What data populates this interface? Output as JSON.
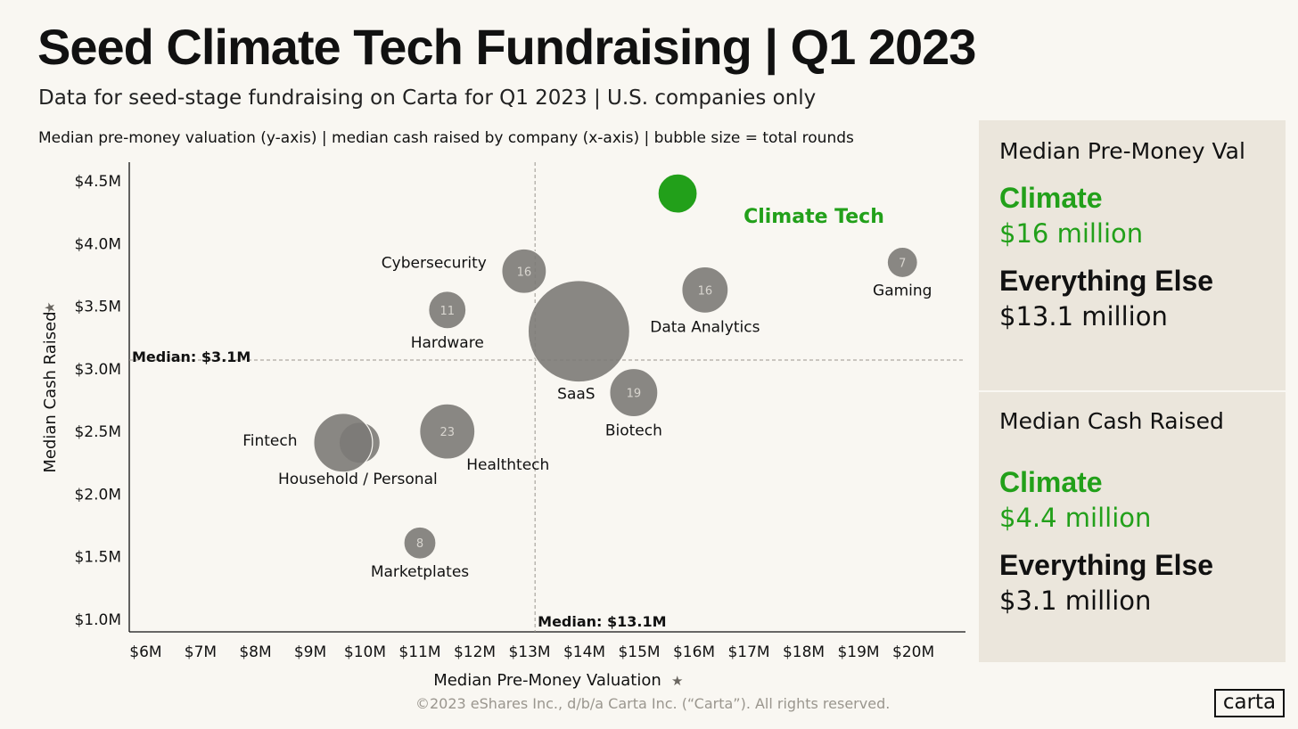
{
  "header": {
    "title": "Seed Climate Tech Fundraising | Q1 2023",
    "subtitle": "Data for seed-stage fundraising on Carta for Q1 2023 | U.S. companies only",
    "note": "Median pre-money valuation (y-axis) |  median cash raised by company (x-axis) | bubble size = total rounds"
  },
  "chart_data": {
    "type": "scatter",
    "subtype": "bubble",
    "xlabel": "Median Pre-Money Valuation",
    "ylabel": "Median Cash Raised",
    "x_ticks": [
      "$6M",
      "$7M",
      "$8M",
      "$9M",
      "$10M",
      "$11M",
      "$12M",
      "$13M",
      "$14M",
      "$15M",
      "$16M",
      "$17M",
      "$18M",
      "$19M",
      "$20M"
    ],
    "x_tick_values": [
      6,
      7,
      8,
      9,
      10,
      11,
      12,
      13,
      14,
      15,
      16,
      17,
      18,
      19,
      20
    ],
    "y_ticks": [
      "$1.0M",
      "$1.5M",
      "$2.0M",
      "$2.5M",
      "$3.0M",
      "$3.5M",
      "$4.0M",
      "$4.5M"
    ],
    "y_tick_values": [
      1.0,
      1.5,
      2.0,
      2.5,
      3.0,
      3.5,
      4.0,
      4.5
    ],
    "xlim": [
      5.7,
      20.95
    ],
    "ylim": [
      0.9,
      4.65
    ],
    "units": "$M",
    "median_lines": [
      {
        "axis": "x",
        "value": 13.1,
        "label": "Median: $13.1M"
      },
      {
        "axis": "y",
        "value": 3.07,
        "label": "Median: $3.1M"
      }
    ],
    "points": [
      {
        "name": "Climate Tech",
        "x": 15.7,
        "y": 4.4,
        "rounds": null,
        "highlight": true
      },
      {
        "name": "Gaming",
        "x": 19.8,
        "y": 3.85,
        "rounds": 7
      },
      {
        "name": "Cybersecurity",
        "x": 12.9,
        "y": 3.78,
        "rounds": 16
      },
      {
        "name": "Data Analytics",
        "x": 16.2,
        "y": 3.63,
        "rounds": 16
      },
      {
        "name": "Hardware",
        "x": 11.5,
        "y": 3.47,
        "rounds": 11
      },
      {
        "name": "SaaS",
        "x": 13.9,
        "y": 3.3,
        "rounds": null
      },
      {
        "name": "Biotech",
        "x": 14.9,
        "y": 2.81,
        "rounds": 19
      },
      {
        "name": "Healthtech",
        "x": 11.5,
        "y": 2.5,
        "rounds": 23
      },
      {
        "name": "Household / Personal",
        "x": 9.9,
        "y": 2.41,
        "rounds": null
      },
      {
        "name": "Fintech",
        "x": 9.6,
        "y": 2.41,
        "rounds": null
      },
      {
        "name": "Marketplates",
        "x": 11.0,
        "y": 1.61,
        "rounds": 8
      }
    ]
  },
  "sidebar": {
    "valuation": {
      "header": "Median Pre-Money Val",
      "climate_label": "Climate",
      "climate_value": "$16 million",
      "else_label": "Everything Else",
      "else_value": "$13.1 million"
    },
    "cash": {
      "header": "Median Cash Raised",
      "climate_label": "Climate",
      "climate_value": "$4.4 million",
      "else_label": "Everything Else",
      "else_value": "$3.1 million"
    }
  },
  "footer": {
    "copyright": "©2023 eShares Inc., d/b/a Carta Inc. (“Carta”). All rights reserved.",
    "logo_text": "carta"
  },
  "colors": {
    "background": "#f9f7f2",
    "sidebar": "#ebe6dc",
    "bubble": "#7c7a77",
    "climate": "#22a01a"
  }
}
